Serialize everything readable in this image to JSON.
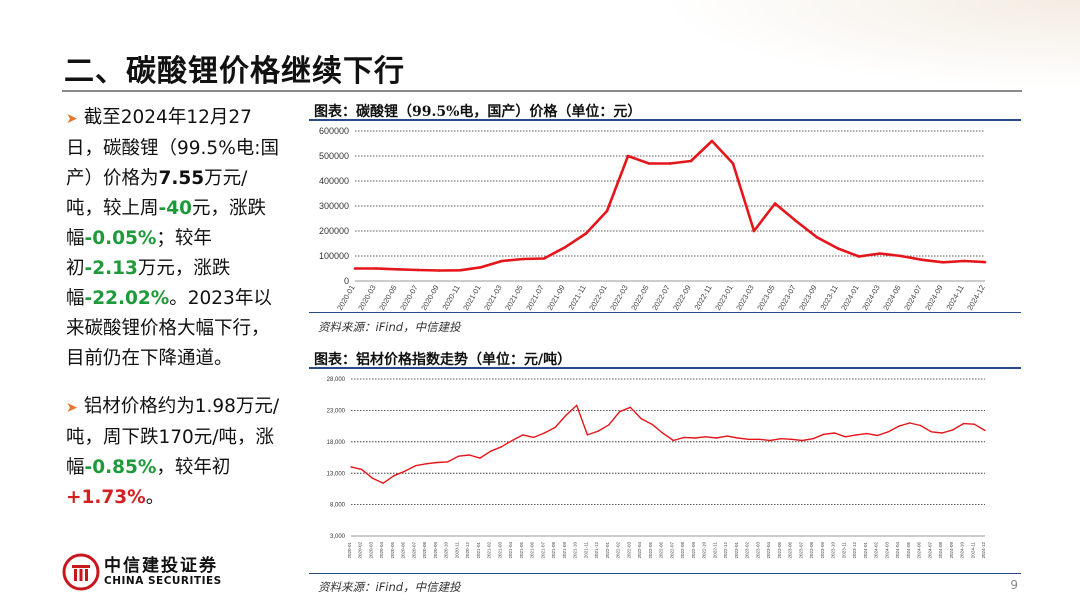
{
  "slide": {
    "title": "二、碳酸锂价格继续下行",
    "page_number": "9"
  },
  "bullets": {
    "b1": {
      "t1": "截至2024年12月27日，碳酸锂（99.5%电:国产）价格为",
      "v1": "7.55",
      "t2": "万元/吨，较上周",
      "v2": "-40",
      "t3": "元，涨跌幅",
      "v3": "-0.05%",
      "t4": "；较年初",
      "v4": "-2.13",
      "t5": "万元，涨跌幅",
      "v5": "-22.02%",
      "t6": "。2023年以来碳酸锂价格大幅下行，目前仍在下降通道。"
    },
    "b2": {
      "t1": "铝材价格约为1.98万元/吨，周下跌170元/吨，涨幅",
      "v1": "-0.85%",
      "t2": "，较年初",
      "v2": "+1.73%",
      "t3": "。"
    }
  },
  "logo": {
    "cn": "中信建投证券",
    "en": "CHINA SECURITIES"
  },
  "colors": {
    "accent_orange": "#e8772e",
    "line_red": "#e5161b",
    "rule_blue": "#2b4a8a",
    "positive_red": "#d42020",
    "negative_green": "#1f9a3a"
  },
  "chart_data": [
    {
      "type": "line",
      "title": "图表：碳酸锂（99.5%电，国产）价格（单位：元）",
      "source": "资料来源：iFind，中信建投",
      "y_ticks": [
        "0",
        "100000",
        "200000",
        "300000",
        "400000",
        "500000",
        "600000"
      ],
      "ylim": [
        0,
        600000
      ],
      "grid": true,
      "x": [
        "2020-01",
        "2020-03",
        "2020-05",
        "2020-07",
        "2020-09",
        "2020-11",
        "2021-01",
        "2021-03",
        "2021-05",
        "2021-07",
        "2021-09",
        "2021-11",
        "2022-01",
        "2022-03",
        "2022-05",
        "2022-07",
        "2022-09",
        "2022-11",
        "2023-01",
        "2023-03",
        "2023-05",
        "2023-07",
        "2023-09",
        "2023-11",
        "2024-01",
        "2024-03",
        "2024-05",
        "2024-07",
        "2024-09",
        "2024-11",
        "2024-12"
      ],
      "series": [
        {
          "values": [
            50000,
            50000,
            47000,
            44000,
            42000,
            43000,
            55000,
            80000,
            88000,
            90000,
            135000,
            190000,
            280000,
            500000,
            470000,
            470000,
            480000,
            560000,
            470000,
            200000,
            310000,
            240000,
            175000,
            130000,
            98000,
            110000,
            100000,
            85000,
            75000,
            80000,
            75500
          ]
        }
      ]
    },
    {
      "type": "line",
      "title": "图表：铝材价格指数走势（单位：元/吨）",
      "source": "资料来源：iFind，中信建投",
      "y_ticks": [
        "3,000",
        "8,000",
        "13,000",
        "18,000",
        "23,000",
        "28,000"
      ],
      "ylim": [
        3000,
        28000
      ],
      "grid": true,
      "x": [
        "2020-01",
        "2020-02",
        "2020-03",
        "2020-04",
        "2020-05",
        "2020-06",
        "2020-07",
        "2020-08",
        "2020-09",
        "2020-10",
        "2020-11",
        "2020-12",
        "2021-01",
        "2021-02",
        "2021-03",
        "2021-04",
        "2021-05",
        "2021-06",
        "2021-07",
        "2021-08",
        "2021-09",
        "2021-10",
        "2021-11",
        "2021-12",
        "2022-01",
        "2022-02",
        "2022-03",
        "2022-04",
        "2022-05",
        "2022-06",
        "2022-07",
        "2022-08",
        "2022-09",
        "2022-10",
        "2022-11",
        "2022-12",
        "2023-01",
        "2023-02",
        "2023-03",
        "2023-04",
        "2023-05",
        "2023-06",
        "2023-07",
        "2023-08",
        "2023-09",
        "2023-10",
        "2023-11",
        "2023-12",
        "2024-01",
        "2024-02",
        "2024-03",
        "2024-04",
        "2024-05",
        "2024-06",
        "2024-07",
        "2024-08",
        "2024-09",
        "2024-10",
        "2024-11",
        "2024-12"
      ],
      "series": [
        {
          "values": [
            14000,
            13600,
            12200,
            11400,
            12600,
            13300,
            14200,
            14500,
            14700,
            14800,
            15700,
            15900,
            15400,
            16500,
            17200,
            18200,
            19100,
            18700,
            19400,
            20300,
            22200,
            23800,
            19100,
            19700,
            20700,
            22800,
            23500,
            21700,
            20800,
            19400,
            18200,
            18700,
            18600,
            18800,
            18600,
            18900,
            18600,
            18400,
            18400,
            18200,
            18500,
            18400,
            18200,
            18500,
            19200,
            19400,
            18800,
            19100,
            19300,
            19000,
            19600,
            20500,
            21000,
            20600,
            19600,
            19400,
            19900,
            20900,
            20800,
            19800
          ]
        }
      ]
    }
  ]
}
